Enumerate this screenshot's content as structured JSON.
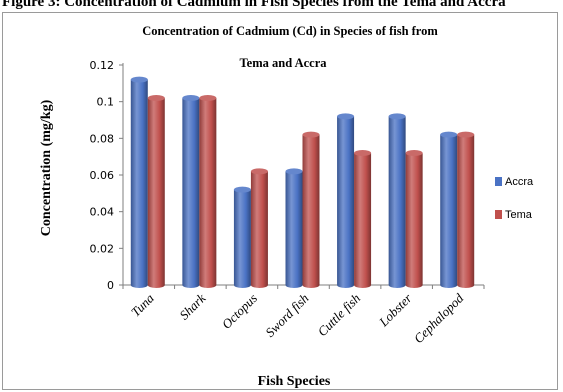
{
  "figure_caption": "Figure 3: Concentration of Cadmium in Fish Species from the Tema and Accra",
  "chart_data": {
    "type": "bar",
    "title": "Concentration of Cadmium (Cd) in Species of fish from",
    "subtitle": "Tema and Accra",
    "xlabel": "Fish Species",
    "ylabel": "Concentration (mg/kg)",
    "categories": [
      "Tuna",
      "Shark",
      "Octopus",
      "Sword fish",
      "Cuttle fish",
      "Lobster",
      "Cephalopod"
    ],
    "series": [
      {
        "name": "Accra",
        "color": "#4a72c4",
        "values": [
          0.112,
          0.102,
          0.052,
          0.062,
          0.092,
          0.092,
          0.082
        ]
      },
      {
        "name": "Tema",
        "color": "#c0504d",
        "values": [
          0.102,
          0.102,
          0.062,
          0.082,
          0.072,
          0.072,
          0.082
        ]
      }
    ],
    "ylim": [
      0,
      0.12
    ],
    "yticks": [
      "0",
      "0.02",
      "0.04",
      "0.06",
      "0.08",
      "0.1",
      "0.12"
    ],
    "grid": false,
    "legend": "right",
    "style": "3d-cylinder"
  }
}
